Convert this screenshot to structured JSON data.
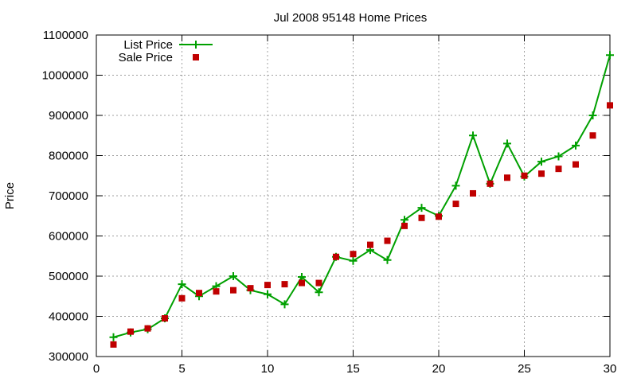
{
  "chart_data": {
    "type": "line",
    "title": "Jul 2008 95148 Home Prices",
    "xlabel": "",
    "ylabel": "Price",
    "xlim": [
      0,
      30
    ],
    "ylim": [
      300000,
      1100000
    ],
    "x_ticks": [
      0,
      5,
      10,
      15,
      20,
      25,
      30
    ],
    "y_ticks": [
      300000,
      400000,
      500000,
      600000,
      700000,
      800000,
      900000,
      1000000,
      1100000
    ],
    "grid": true,
    "legend_position": "top-left",
    "series": [
      {
        "name": "List Price",
        "style": "line+cross",
        "color": "#00a000",
        "x": [
          1,
          2,
          3,
          4,
          5,
          6,
          7,
          8,
          9,
          10,
          11,
          12,
          13,
          14,
          15,
          16,
          17,
          18,
          19,
          20,
          21,
          22,
          23,
          24,
          25,
          26,
          27,
          28,
          29,
          30
        ],
        "values": [
          348000,
          360000,
          368000,
          395000,
          480000,
          450000,
          475000,
          500000,
          465000,
          455000,
          430000,
          498000,
          460000,
          548000,
          538000,
          565000,
          540000,
          640000,
          670000,
          650000,
          725000,
          850000,
          730000,
          830000,
          748000,
          785000,
          798000,
          825000,
          900000,
          1050000
        ]
      },
      {
        "name": "Sale Price",
        "style": "square-marker",
        "color": "#c00000",
        "x": [
          1,
          2,
          3,
          4,
          5,
          6,
          7,
          8,
          9,
          10,
          11,
          12,
          13,
          14,
          15,
          16,
          17,
          18,
          19,
          20,
          21,
          22,
          23,
          24,
          25,
          26,
          27,
          28,
          29,
          30
        ],
        "values": [
          330000,
          362000,
          370000,
          395000,
          445000,
          458000,
          462000,
          465000,
          470000,
          478000,
          480000,
          483000,
          483000,
          548000,
          555000,
          578000,
          588000,
          625000,
          645000,
          648000,
          680000,
          706000,
          730000,
          745000,
          750000,
          755000,
          767000,
          778000,
          850000,
          925000
        ]
      }
    ]
  }
}
